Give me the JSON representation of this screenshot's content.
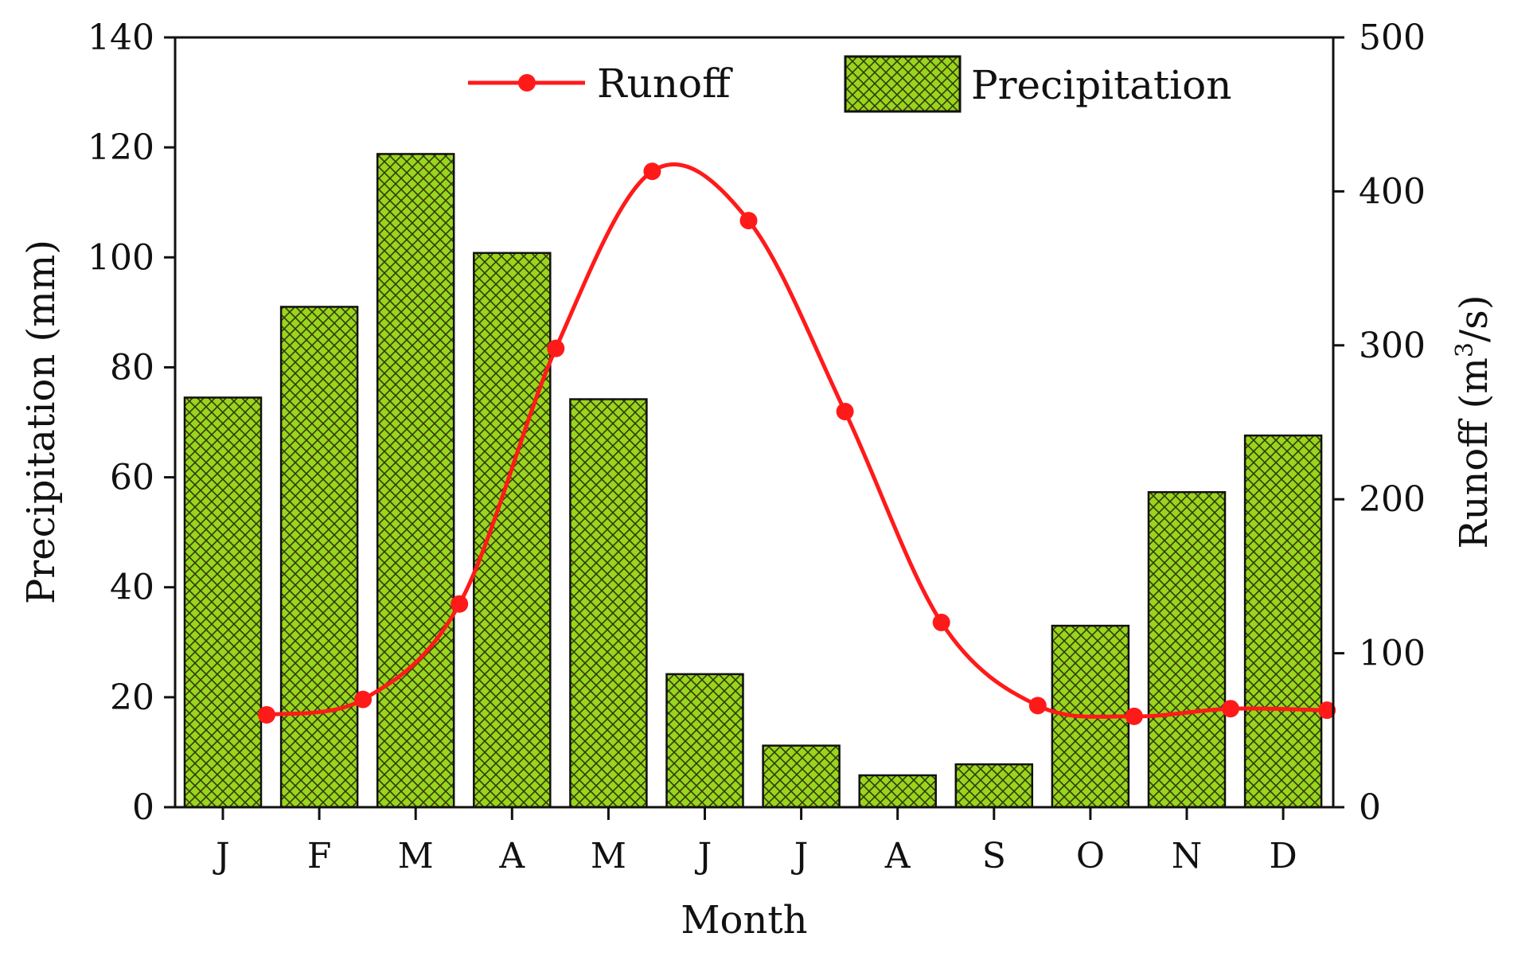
{
  "chart_data": {
    "type": "bar",
    "categories": [
      "J",
      "F",
      "M",
      "A",
      "M",
      "J",
      "J",
      "A",
      "S",
      "O",
      "N",
      "D"
    ],
    "series": [
      {
        "name": "Precipitation",
        "type": "bar",
        "axis": "left",
        "values": [
          74.5,
          91,
          118.8,
          100.8,
          74.2,
          24.2,
          11.2,
          5.8,
          7.8,
          33,
          57.3,
          67.6
        ]
      },
      {
        "name": "Runoff",
        "type": "line",
        "axis": "right",
        "values": [
          60,
          70,
          132,
          298,
          413,
          381,
          257,
          120,
          66,
          59,
          64,
          63
        ]
      }
    ],
    "xlabel": "Month",
    "ylabel_left": "Precipitation (mm)",
    "ylabel_right_base": "Runoff (m",
    "ylabel_right_sup": "3",
    "ylabel_right_tail": "/s)",
    "ylim_left": [
      0,
      140
    ],
    "yticks_left": [
      0,
      20,
      40,
      60,
      80,
      100,
      120,
      140
    ],
    "ylim_right": [
      0,
      500
    ],
    "yticks_right": [
      0,
      100,
      200,
      300,
      400,
      500
    ],
    "legend_placement": "top",
    "grid": false,
    "colors": {
      "bar_fill": "#9ad41c",
      "bar_hatch": "#2e3d0c",
      "line": "#ff1a1a",
      "axis": "#111111"
    }
  }
}
